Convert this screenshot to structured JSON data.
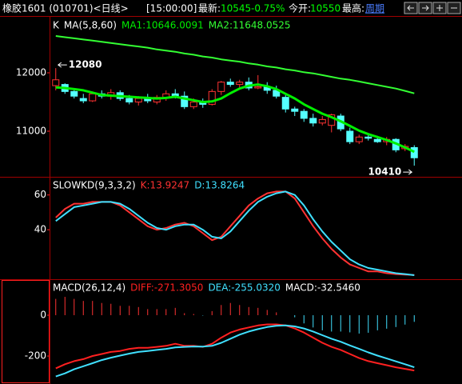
{
  "header": {
    "symbol": "橡胶1601 (010701)<日线>",
    "time": "[15:00:00]",
    "latest_label": "最新:",
    "latest": 10545,
    "change": "-0.75%",
    "open_label": "今开:",
    "open": 10550,
    "high_label": "最高:",
    "period": "周期"
  },
  "chart_data": [
    {
      "type": "candlestick",
      "title": "K",
      "indicator": "MA(5,8,60)",
      "up_color": "#ff3232",
      "down_color": "#54ffff",
      "open": [
        11780,
        11800,
        11680,
        11560,
        11520,
        11640,
        11600,
        11660,
        11560,
        11500,
        11560,
        11500,
        11580,
        11640,
        11600,
        11420,
        11500,
        11460,
        11680,
        11840,
        11800,
        11840,
        11740,
        11760,
        11700,
        11580,
        11380,
        11340,
        11220,
        11140,
        11100,
        11260,
        11000,
        10820,
        10900,
        10860,
        10820,
        10860,
        10700,
        10720
      ],
      "high": [
        12080,
        11820,
        11720,
        11640,
        11680,
        11700,
        11720,
        11700,
        11620,
        11600,
        11640,
        11620,
        11700,
        11720,
        11680,
        11560,
        11560,
        11720,
        11860,
        11900,
        11880,
        11920,
        11960,
        11840,
        11780,
        11620,
        11420,
        11380,
        11300,
        11260,
        11300,
        11300,
        11060,
        10940,
        10960,
        10920,
        10900,
        10880,
        10780,
        10760
      ],
      "low": [
        11700,
        11640,
        11560,
        11480,
        11500,
        11560,
        11540,
        11520,
        11460,
        11440,
        11480,
        11460,
        11520,
        11560,
        11380,
        11380,
        11400,
        11440,
        11620,
        11760,
        11740,
        11700,
        11720,
        11640,
        11560,
        11320,
        11260,
        11160,
        11080,
        11100,
        10980,
        11000,
        10780,
        10780,
        10840,
        10800,
        10760,
        10640,
        10660,
        10410
      ],
      "close": [
        11880,
        11680,
        11600,
        11520,
        11640,
        11600,
        11660,
        11560,
        11500,
        11560,
        11520,
        11580,
        11640,
        11600,
        11420,
        11500,
        11460,
        11680,
        11840,
        11800,
        11840,
        11740,
        11760,
        11700,
        11600,
        11380,
        11340,
        11220,
        11140,
        11200,
        11280,
        11040,
        10820,
        10900,
        10880,
        10820,
        10860,
        10680,
        10740,
        10545
      ],
      "series": [
        {
          "name": "MA1:10646.0091",
          "color": "#00ee00",
          "values": [
            11750,
            11740,
            11720,
            11700,
            11660,
            11620,
            11610,
            11600,
            11590,
            11580,
            11570,
            11560,
            11570,
            11590,
            11560,
            11530,
            11500,
            11510,
            11560,
            11650,
            11730,
            11780,
            11800,
            11770,
            11720,
            11640,
            11560,
            11460,
            11380,
            11300,
            11240,
            11170,
            11090,
            11010,
            10950,
            10900,
            10850,
            10790,
            10720,
            10646.0091
          ]
        },
        {
          "name": "MA2:11648.0525",
          "color": "#33ff33",
          "values": [
            12630,
            12610,
            12590,
            12570,
            12550,
            12530,
            12510,
            12490,
            12470,
            12450,
            12430,
            12400,
            12380,
            12360,
            12330,
            12310,
            12280,
            12260,
            12230,
            12210,
            12190,
            12160,
            12140,
            12110,
            12090,
            12060,
            12040,
            12010,
            11990,
            11960,
            11930,
            11900,
            11880,
            11850,
            11820,
            11790,
            11760,
            11730,
            11690,
            11648.0525
          ]
        }
      ],
      "annotations": [
        12080,
        10410
      ],
      "ylim": [
        10233,
        12945
      ],
      "yticks": [
        11000,
        12000
      ]
    },
    {
      "type": "line",
      "title": "SLOWKD(9,3,3,2)",
      "series": [
        {
          "name": "K:13.9247",
          "color": "#ff3232",
          "values": [
            47,
            52,
            55,
            55,
            56,
            56,
            56,
            54,
            50,
            46,
            42,
            40,
            41,
            43,
            44,
            42,
            38,
            34,
            36,
            42,
            48,
            54,
            58,
            61,
            62,
            62,
            58,
            50,
            42,
            35,
            29,
            24,
            20,
            18,
            16,
            16,
            15,
            14.5,
            14.2,
            13.9247
          ]
        },
        {
          "name": "D:13.8264",
          "color": "#40e0ff",
          "values": [
            45,
            49,
            53,
            54,
            55,
            56,
            56,
            55,
            52,
            48,
            44,
            41,
            40,
            42,
            43,
            43,
            40,
            36,
            35,
            39,
            45,
            51,
            56,
            59,
            61,
            62,
            60,
            54,
            46,
            39,
            33,
            28,
            23,
            20,
            18,
            17,
            16,
            15,
            14.5,
            13.8264
          ]
        }
      ],
      "ylim": [
        12,
        70
      ],
      "yticks": [
        40,
        60
      ]
    },
    {
      "type": "macd",
      "title": "MACD(26,12,4)",
      "series": [
        {
          "name": "DIFF:-271.3050",
          "color": "#ff2020",
          "values": [
            -260,
            -240,
            -225,
            -215,
            -200,
            -190,
            -180,
            -175,
            -165,
            -160,
            -160,
            -155,
            -150,
            -140,
            -150,
            -150,
            -155,
            -140,
            -110,
            -85,
            -70,
            -60,
            -50,
            -45,
            -45,
            -50,
            -65,
            -85,
            -110,
            -135,
            -155,
            -170,
            -190,
            -210,
            -225,
            -235,
            -245,
            -255,
            -263,
            -271.305
          ]
        },
        {
          "name": "DEA:-255.0320",
          "color": "#40e0ff",
          "values": [
            -300,
            -285,
            -265,
            -250,
            -235,
            -220,
            -208,
            -198,
            -188,
            -180,
            -175,
            -170,
            -165,
            -158,
            -155,
            -153,
            -154,
            -150,
            -135,
            -115,
            -95,
            -80,
            -68,
            -58,
            -52,
            -50,
            -55,
            -65,
            -80,
            -98,
            -115,
            -130,
            -148,
            -165,
            -182,
            -198,
            -212,
            -226,
            -240,
            -255.032
          ]
        }
      ],
      "bars": {
        "name": "MACD:-32.5460",
        "up_color": "#ff3232",
        "down_color": "#40e0ff",
        "values": [
          80,
          90,
          80,
          70,
          70,
          60,
          56,
          46,
          46,
          40,
          30,
          30,
          30,
          36,
          10,
          6,
          -2,
          20,
          50,
          60,
          50,
          40,
          36,
          26,
          14,
          0,
          -10,
          -40,
          -60,
          -74,
          -80,
          -80,
          -84,
          -90,
          -86,
          -74,
          -66,
          -58,
          -46,
          -32.546
        ]
      },
      "ylim": [
        -337,
        172.5
      ],
      "yticks": [
        -200,
        0
      ]
    }
  ]
}
